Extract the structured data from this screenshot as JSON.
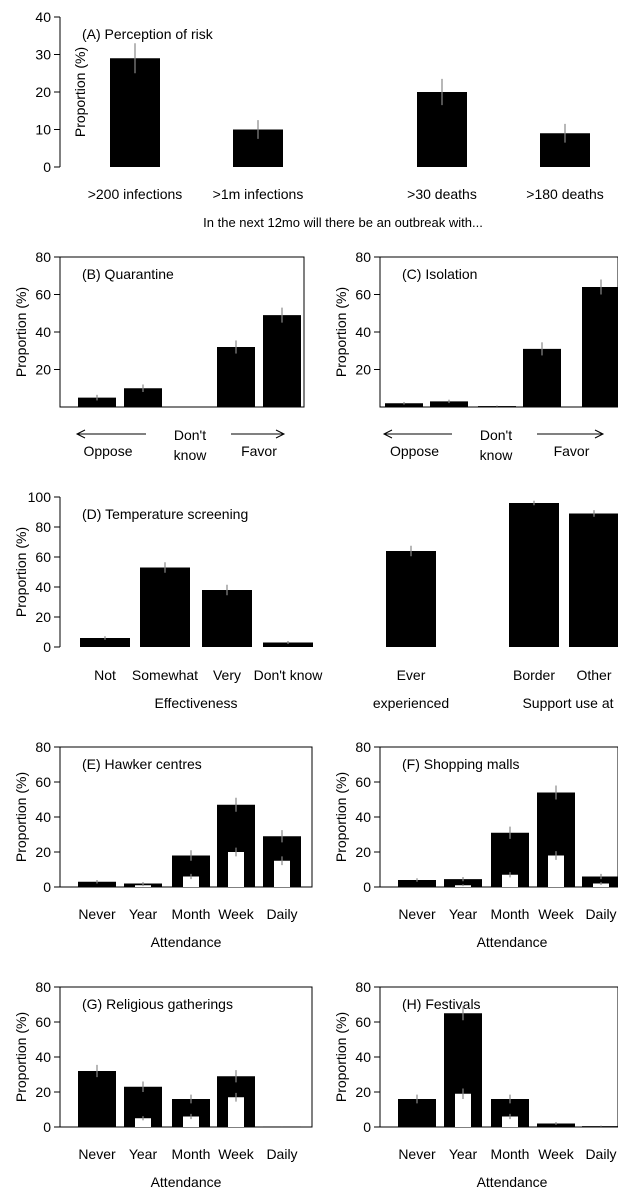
{
  "chart_data": [
    {
      "id": "A",
      "type": "bar",
      "title": "(A) Perception of risk",
      "ylabel": "Proportion (%)",
      "xlabel": "In the next 12mo will there be an outbreak with...",
      "ylim": [
        0,
        40
      ],
      "yticks": [
        0,
        10,
        20,
        30,
        40
      ],
      "frame": "left-only",
      "errorbars": true,
      "categories": [
        ">200 infections",
        ">1m infections",
        ">30 deaths",
        ">180 deaths"
      ],
      "series": [
        {
          "values": [
            29,
            10,
            20,
            9
          ],
          "errors": [
            4,
            2.5,
            3.5,
            2.5
          ]
        }
      ]
    },
    {
      "id": "B",
      "type": "bar",
      "title": "(B) Quarantine",
      "ylabel": "Proportion (%)",
      "ylim": [
        0,
        80
      ],
      "yticks": [
        20,
        40,
        60,
        80
      ],
      "frame": "box",
      "errorbars": true,
      "categories": [
        "",
        "",
        "",
        "",
        ""
      ],
      "series": [
        {
          "values": [
            5,
            10,
            0,
            32,
            49
          ],
          "errors": [
            1.5,
            2,
            0,
            3.5,
            4
          ]
        }
      ],
      "labels": {
        "left": "Oppose",
        "mid1": "Don't",
        "mid2": "know",
        "right": "Favor"
      }
    },
    {
      "id": "C",
      "type": "bar",
      "title": "(C) Isolation",
      "ylabel": "Proportion (%)",
      "ylim": [
        0,
        80
      ],
      "yticks": [
        20,
        40,
        60,
        80
      ],
      "frame": "box",
      "errorbars": true,
      "categories": [
        "",
        "",
        "",
        "",
        ""
      ],
      "series": [
        {
          "values": [
            2,
            3,
            0.5,
            31,
            64
          ],
          "errors": [
            0.7,
            0.9,
            0.3,
            3.5,
            4
          ]
        }
      ],
      "labels": {
        "left": "Oppose",
        "mid1": "Don't",
        "mid2": "know",
        "right": "Favor"
      }
    },
    {
      "id": "D",
      "type": "bar",
      "title": "(D) Temperature screening",
      "ylabel": "Proportion (%)",
      "ylim": [
        0,
        100
      ],
      "yticks": [
        0,
        20,
        40,
        60,
        80,
        100
      ],
      "frame": "left-only",
      "errorbars": true,
      "categories": [
        "Not",
        "Somewhat",
        "Very",
        "Don't know",
        "Ever",
        "Border",
        "Other"
      ],
      "series": [
        {
          "values": [
            6,
            53,
            38,
            3,
            64,
            96,
            89
          ],
          "errors": [
            1.2,
            3.5,
            3.5,
            1,
            3.5,
            1.5,
            2.2
          ]
        }
      ],
      "groups": [
        "Effectiveness",
        "experienced",
        "Support use at"
      ]
    },
    {
      "id": "E",
      "type": "bar",
      "title": "(E) Hawker centres",
      "ylabel": "Proportion (%)",
      "xlabel": "Attendance",
      "ylim": [
        0,
        80
      ],
      "yticks": [
        0,
        20,
        40,
        60,
        80
      ],
      "frame": "box",
      "errorbars": true,
      "categories": [
        "Never",
        "Year",
        "Month",
        "Week",
        "Daily"
      ],
      "series": [
        {
          "values": [
            3,
            2,
            18,
            47,
            29
          ],
          "errors": [
            1,
            0.8,
            3,
            4,
            3.5
          ]
        },
        {
          "values": [
            0,
            1,
            6,
            20,
            15
          ],
          "errors": [
            0,
            0.5,
            1.5,
            2.5,
            2.5
          ]
        }
      ]
    },
    {
      "id": "F",
      "type": "bar",
      "title": "(F) Shopping malls",
      "ylabel": "Proportion (%)",
      "xlabel": "Attendance",
      "ylim": [
        0,
        80
      ],
      "yticks": [
        0,
        20,
        40,
        60,
        80
      ],
      "frame": "box",
      "errorbars": true,
      "categories": [
        "Never",
        "Year",
        "Month",
        "Week",
        "Daily"
      ],
      "series": [
        {
          "values": [
            4,
            4.5,
            31,
            54,
            6
          ],
          "errors": [
            1,
            1.2,
            3.5,
            4,
            1.5
          ]
        },
        {
          "values": [
            0,
            1,
            7,
            18,
            2
          ],
          "errors": [
            0,
            0.5,
            1.5,
            2.5,
            0.8
          ]
        }
      ]
    },
    {
      "id": "G",
      "type": "bar",
      "title": "(G) Religious gatherings",
      "ylabel": "Proportion (%)",
      "xlabel": "Attendance",
      "ylim": [
        0,
        80
      ],
      "yticks": [
        0,
        20,
        40,
        60,
        80
      ],
      "frame": "box",
      "errorbars": true,
      "categories": [
        "Never",
        "Year",
        "Month",
        "Week",
        "Daily"
      ],
      "series": [
        {
          "values": [
            32,
            23,
            16,
            29,
            0.3
          ],
          "errors": [
            3.5,
            3,
            2.5,
            3.5,
            0.2
          ]
        },
        {
          "values": [
            0,
            5,
            6,
            17,
            0
          ],
          "errors": [
            0,
            1.2,
            1.5,
            2.5,
            0
          ]
        }
      ]
    },
    {
      "id": "H",
      "type": "bar",
      "title": "(H) Festivals",
      "ylabel": "Proportion (%)",
      "xlabel": "Attendance",
      "ylim": [
        0,
        80
      ],
      "yticks": [
        0,
        20,
        40,
        60,
        80
      ],
      "frame": "box",
      "errorbars": true,
      "categories": [
        "Never",
        "Year",
        "Month",
        "Week",
        "Daily"
      ],
      "series": [
        {
          "values": [
            16,
            65,
            16,
            2,
            0.5
          ],
          "errors": [
            2.5,
            4,
            2.5,
            0.8,
            0.3
          ]
        },
        {
          "values": [
            0,
            19,
            6,
            0,
            0
          ],
          "errors": [
            0,
            3,
            1.5,
            0,
            0
          ]
        }
      ]
    }
  ]
}
